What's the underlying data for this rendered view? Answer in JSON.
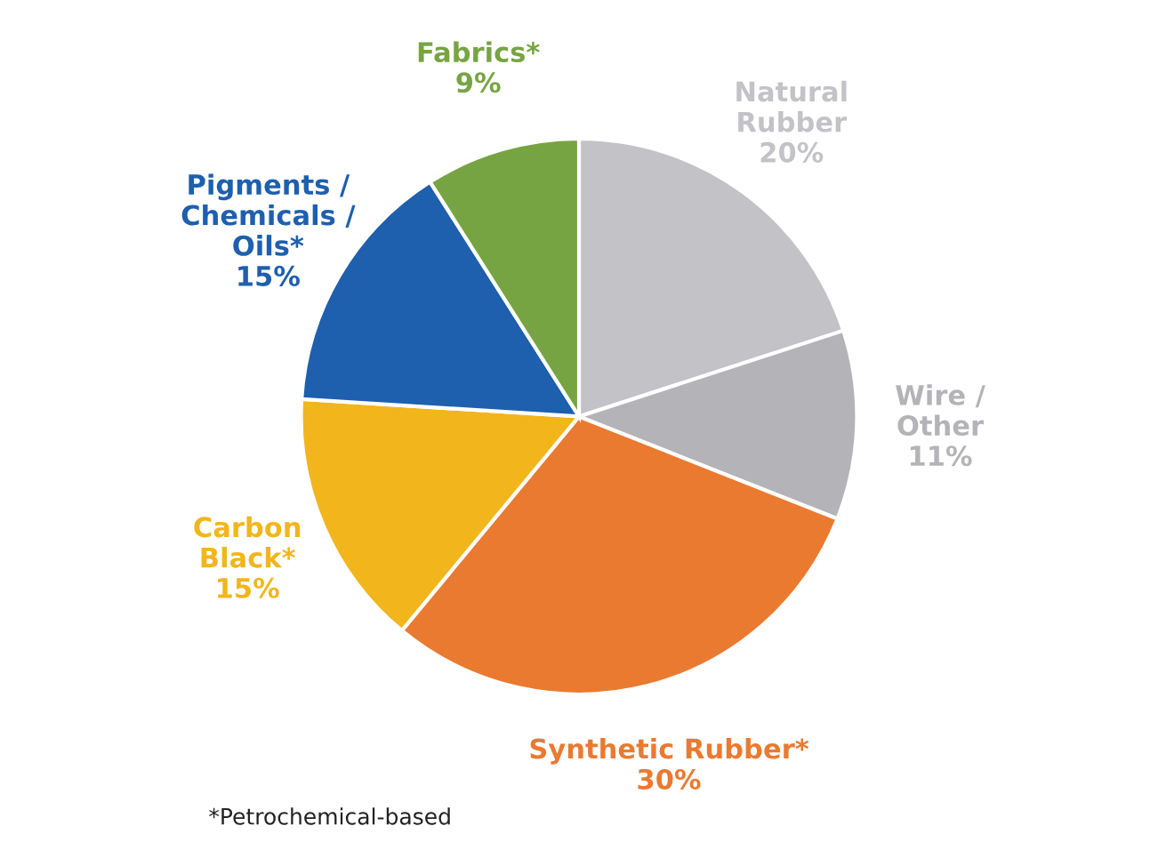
{
  "chart_data": {
    "type": "pie",
    "categories": [
      "Natural\nRubber",
      "Wire /\nOther",
      "Synthetic Rubber*",
      "Carbon\nBlack*",
      "Pigments /\nChemicals /\nOils*",
      "Fabrics*"
    ],
    "values": [
      20,
      11,
      30,
      15,
      15,
      9
    ],
    "value_labels": [
      "20%",
      "11%",
      "30%",
      "15%",
      "15%",
      "9%"
    ],
    "colors": [
      "#c3c2c7",
      "#b4b4b8",
      "#ea7a30",
      "#f2b51c",
      "#1e5fae",
      "#77a443"
    ],
    "annotations": [
      "*Petrochemical-based"
    ]
  }
}
